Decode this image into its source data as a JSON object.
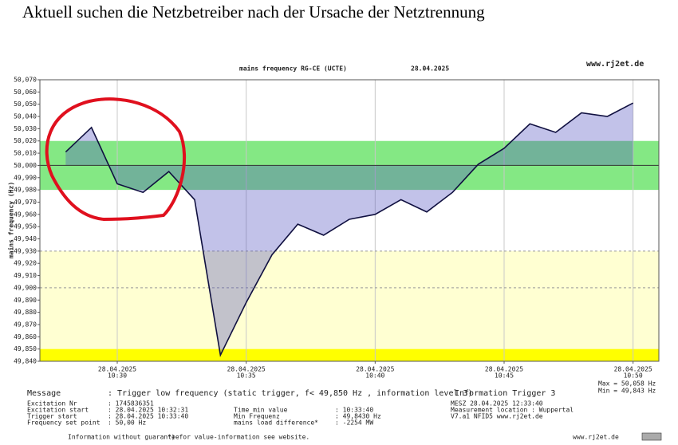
{
  "headline": "Aktuell suchen die Netzbetreiber nach der Ursache der Netztrennung",
  "chart_data": {
    "type": "line",
    "title": "mains frequency RG-CE (UCTE)",
    "date": "28.04.2025",
    "source": "www.rj2et.de",
    "ylabel": "mains frequency (Hz)",
    "x": [
      "10:28",
      "10:29",
      "10:30",
      "10:31",
      "10:32",
      "10:33",
      "10:34",
      "10:35",
      "10:36",
      "10:37",
      "10:38",
      "10:39",
      "10:40",
      "10:41",
      "10:42",
      "10:43",
      "10:44",
      "10:45",
      "10:46",
      "10:47",
      "10:48",
      "10:49",
      "10:50"
    ],
    "series": [
      {
        "name": "mains frequency",
        "color": "#101040",
        "values": [
          50.011,
          50.031,
          49.985,
          49.978,
          49.995,
          49.972,
          49.845,
          49.888,
          49.927,
          49.952,
          49.943,
          49.956,
          49.96,
          49.972,
          49.962,
          49.978,
          50.001,
          50.014,
          50.034,
          50.027,
          50.043,
          50.04,
          50.051
        ]
      }
    ],
    "area_color": "#5050c0",
    "baseline": 50.0,
    "bands": [
      {
        "from": 49.98,
        "to": 50.02,
        "color": "#84e884"
      },
      {
        "from": 49.85,
        "to": 49.93,
        "color": "#ffffd2"
      },
      {
        "from": 49.84,
        "to": 49.85,
        "color": "#ffff00"
      }
    ],
    "dashed_lines": [
      49.93,
      49.9
    ],
    "xlim": [
      "10:27",
      "10:51"
    ],
    "xticks": [
      "10:30",
      "10:35",
      "10:40",
      "10:45",
      "10:50"
    ],
    "ylim": [
      49.84,
      50.07
    ],
    "yticks": [
      {
        "value": 49.84,
        "label": "49,840"
      },
      {
        "value": 49.85,
        "label": "49,850"
      },
      {
        "value": 49.86,
        "label": "49,860"
      },
      {
        "value": 49.87,
        "label": "49,870"
      },
      {
        "value": 49.88,
        "label": "49,880"
      },
      {
        "value": 49.89,
        "label": "49,890"
      },
      {
        "value": 49.9,
        "label": "49,900"
      },
      {
        "value": 49.91,
        "label": "49,910"
      },
      {
        "value": 49.92,
        "label": "49,920"
      },
      {
        "value": 49.93,
        "label": "49,930"
      },
      {
        "value": 49.94,
        "label": "49,940"
      },
      {
        "value": 49.95,
        "label": "49,950"
      },
      {
        "value": 49.96,
        "label": "49,960"
      },
      {
        "value": 49.97,
        "label": "49,970"
      },
      {
        "value": 49.98,
        "label": "49,980"
      },
      {
        "value": 49.99,
        "label": "49,990"
      },
      {
        "value": 50.0,
        "label": "50,000"
      },
      {
        "value": 50.01,
        "label": "50,010"
      },
      {
        "value": 50.02,
        "label": "50,020"
      },
      {
        "value": 50.03,
        "label": "50,030"
      },
      {
        "value": 50.04,
        "label": "50,040"
      },
      {
        "value": 50.05,
        "label": "50,050"
      },
      {
        "value": 50.06,
        "label": "50,060"
      },
      {
        "value": 50.07,
        "label": "50,070"
      }
    ],
    "grid": true
  },
  "info": {
    "max": "Max = 50,058 Hz",
    "min": "Min = 49,843 Hz",
    "message_label": "Message",
    "message": ": Trigger low frequency (static trigger, f< 49,850 Hz , information level 3)",
    "trigger": "Information Trigger 3",
    "col1_labels": [
      "Excitation Nr",
      "Excitation start",
      "Trigger start",
      "Frequency set point"
    ],
    "col1_values": [
      ": 1745836351",
      ": 28.04.2025 10:32:31",
      ": 28.04.2025 10:33:40",
      ": 50,00 Hz"
    ],
    "col2_labels": [
      "Time min value",
      "Min Frequenz",
      "mains load difference*"
    ],
    "col2_values": [
      ": 10:33:40",
      ": 49,8430 Hz",
      ": -2254 MW"
    ],
    "col3": [
      "MESZ 28.04.2025 12:33:40",
      "Measurement location : Wuppertal",
      "V7.a1 NFID5 www.rj2et.de"
    ]
  },
  "footer": {
    "left": "Information without guarantee",
    "middle": "*) for value-information see website.",
    "right": "www.rj2et.de"
  }
}
